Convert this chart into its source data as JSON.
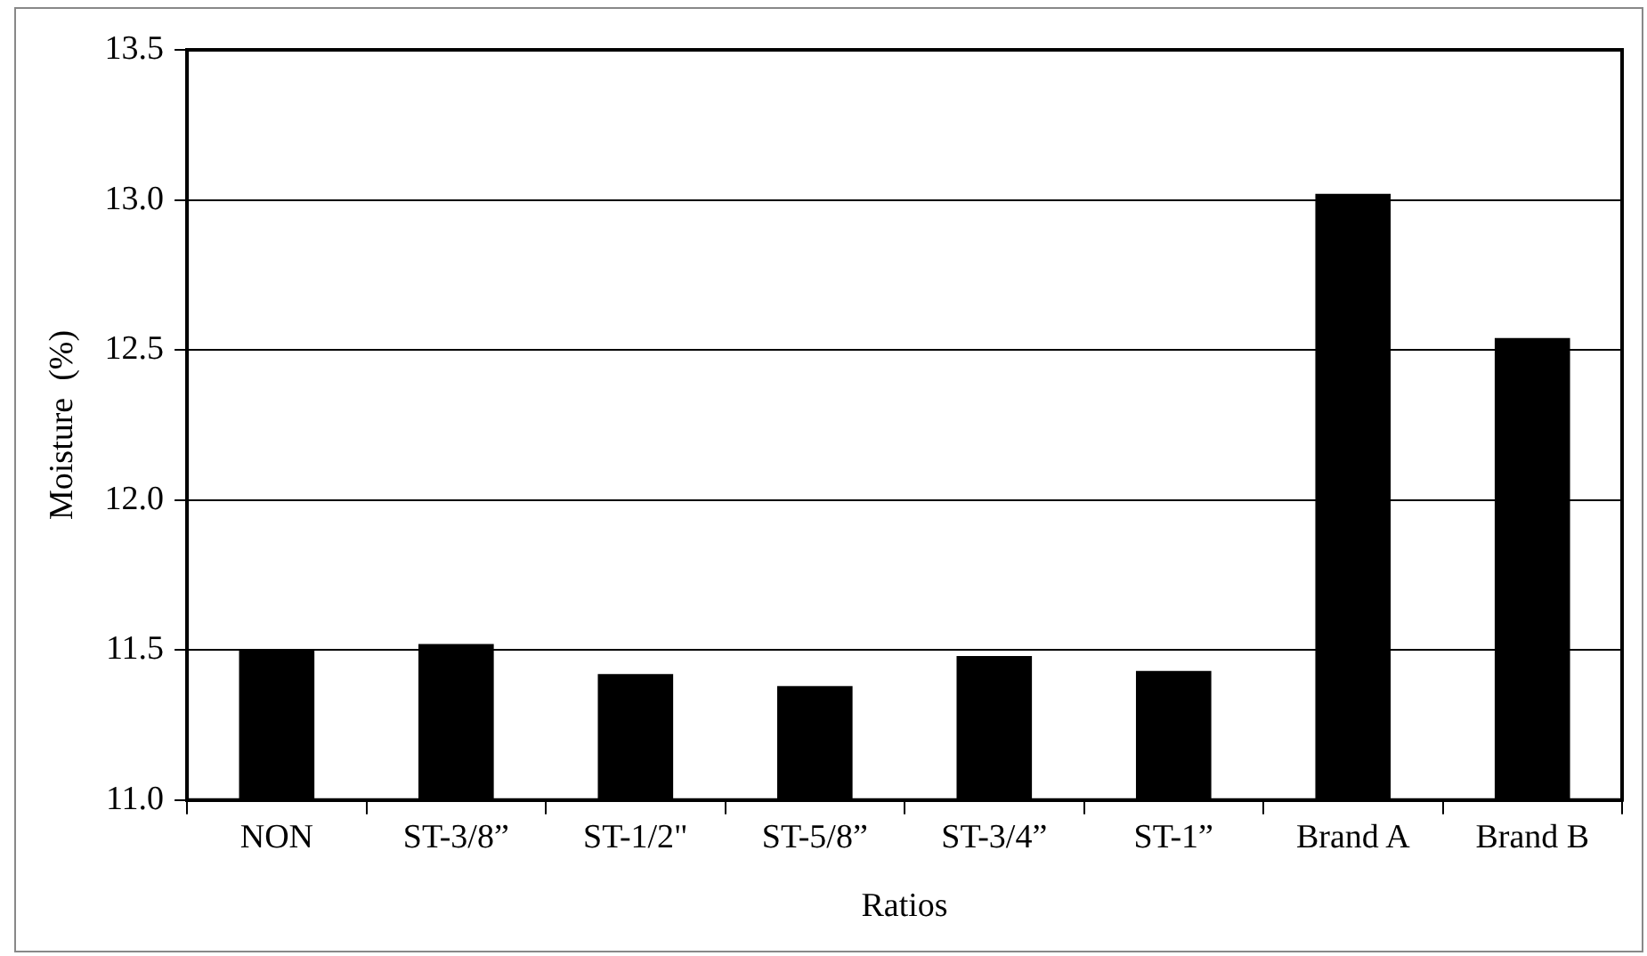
{
  "chart_data": {
    "type": "bar",
    "xlabel": "Ratios",
    "ylabel": "Moisture  (%)",
    "categories": [
      "NON",
      "ST-3/8”",
      "ST-1/2\"",
      "ST-5/8”",
      "ST-3/4”",
      "ST-1”",
      "Brand A",
      "Brand B"
    ],
    "values": [
      11.5,
      11.52,
      11.42,
      11.38,
      11.48,
      11.43,
      13.02,
      12.54
    ],
    "color": "#000000",
    "ylim": [
      11.0,
      13.5
    ],
    "yticks": [
      {
        "value": 11,
        "label": "11.0"
      },
      {
        "value": 11.5,
        "label": "11.5"
      },
      {
        "value": 12,
        "label": "12.0"
      },
      {
        "value": 12.5,
        "label": "12.5"
      },
      {
        "value": 13,
        "label": "13.0"
      },
      {
        "value": 13.5,
        "label": "13.5"
      }
    ],
    "grid": "y",
    "legend": false
  }
}
